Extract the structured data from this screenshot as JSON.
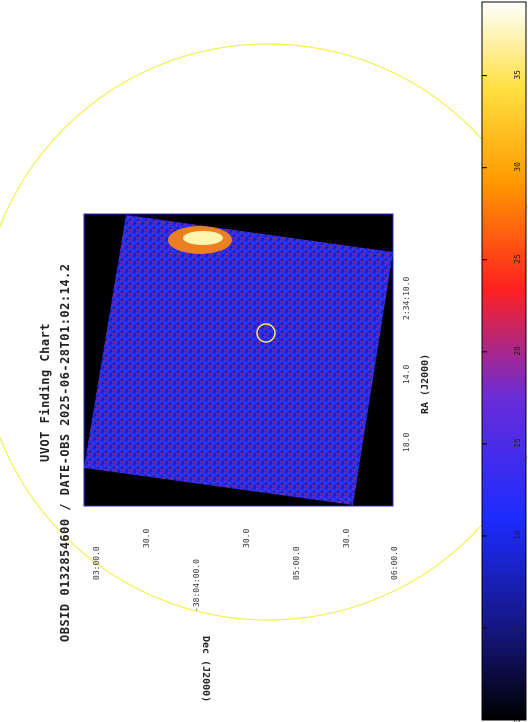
{
  "title": {
    "line1": "UVOT Finding Chart",
    "line2": "OBSID 0132854600 / DATE-OBS 2025-06-28T01:02:14.2"
  },
  "axes": {
    "ra_label": "RA (J2000)",
    "dec_label": "Dec (J2000)",
    "ra_ticks": [
      "2:34:10.0",
      "14.0",
      "18.0"
    ],
    "dec_ticks": [
      "03:00.0",
      "30.0",
      "-38:04:00.0",
      "30.0",
      "05:00.0",
      "30.0",
      "06:00.0"
    ]
  },
  "colorbar": {
    "ticks": [
      "0",
      "5",
      "10",
      "15",
      "20",
      "25",
      "30",
      "35"
    ],
    "colors": [
      "#000000",
      "#1a1a7a",
      "#1c2cff",
      "#7a2cc8",
      "#ff2020",
      "#ffa000",
      "#ffff40",
      "#ffffff"
    ]
  },
  "overlay": {
    "large_circle_color": "#f3f056",
    "target_circle_color": "#f3f056"
  }
}
